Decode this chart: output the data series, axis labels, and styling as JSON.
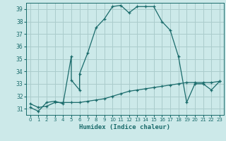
{
  "xlabel": "Humidex (Indice chaleur)",
  "background_color": "#cce9e9",
  "grid_color": "#aacccc",
  "line_color": "#1a6b6b",
  "xlim": [
    -0.5,
    23.5
  ],
  "ylim": [
    30.5,
    39.5
  ],
  "yticks": [
    31,
    32,
    33,
    34,
    35,
    36,
    37,
    38,
    39
  ],
  "xticks": [
    0,
    1,
    2,
    3,
    4,
    5,
    6,
    7,
    8,
    9,
    10,
    11,
    12,
    13,
    14,
    15,
    16,
    17,
    18,
    19,
    20,
    21,
    22,
    23
  ],
  "line1_x": [
    0,
    1,
    2,
    3,
    4,
    5,
    5,
    6,
    6,
    7,
    8,
    9,
    10,
    11,
    12,
    13,
    14,
    15,
    16,
    17,
    18,
    19,
    20,
    21,
    22,
    23
  ],
  "line1_y": [
    31.1,
    30.8,
    31.5,
    31.6,
    31.4,
    35.2,
    33.3,
    32.5,
    33.8,
    35.5,
    37.5,
    38.2,
    39.2,
    39.3,
    38.7,
    39.2,
    39.2,
    39.2,
    38.0,
    37.3,
    35.2,
    31.5,
    33.0,
    33.0,
    32.5,
    33.2
  ],
  "line2_x": [
    0,
    1,
    2,
    3,
    4,
    5,
    6,
    7,
    8,
    9,
    10,
    11,
    12,
    13,
    14,
    15,
    16,
    17,
    18,
    19,
    20,
    21,
    22,
    23
  ],
  "line2_y": [
    31.4,
    31.1,
    31.2,
    31.5,
    31.5,
    31.5,
    31.5,
    31.6,
    31.7,
    31.8,
    32.0,
    32.2,
    32.4,
    32.5,
    32.6,
    32.7,
    32.8,
    32.9,
    33.0,
    33.1,
    33.1,
    33.1,
    33.1,
    33.2
  ]
}
